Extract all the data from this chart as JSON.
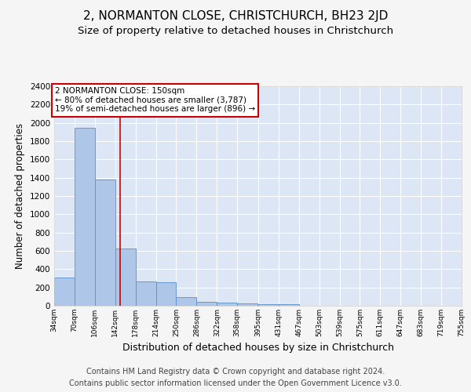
{
  "title": "2, NORMANTON CLOSE, CHRISTCHURCH, BH23 2JD",
  "subtitle": "Size of property relative to detached houses in Christchurch",
  "xlabel": "Distribution of detached houses by size in Christchurch",
  "ylabel": "Number of detached properties",
  "footer_line1": "Contains HM Land Registry data © Crown copyright and database right 2024.",
  "footer_line2": "Contains public sector information licensed under the Open Government Licence v3.0.",
  "bar_edges": [
    34,
    70,
    106,
    142,
    178,
    214,
    250,
    286,
    322,
    358,
    395,
    431,
    467,
    503,
    539,
    575,
    611,
    647,
    683,
    719,
    755
  ],
  "bar_heights": [
    310,
    1950,
    1380,
    630,
    270,
    260,
    95,
    45,
    35,
    25,
    20,
    15,
    0,
    0,
    0,
    0,
    0,
    0,
    0,
    0
  ],
  "bar_color": "#aec6e8",
  "bar_edge_color": "#5b8fc9",
  "property_line_x": 150,
  "property_line_color": "#cc0000",
  "annotation_line1": "2 NORMANTON CLOSE: 150sqm",
  "annotation_line2": "← 80% of detached houses are smaller (3,787)",
  "annotation_line3": "19% of semi-detached houses are larger (896) →",
  "annotation_box_color": "#cc0000",
  "ylim": [
    0,
    2400
  ],
  "yticks": [
    0,
    200,
    400,
    600,
    800,
    1000,
    1200,
    1400,
    1600,
    1800,
    2000,
    2200,
    2400
  ],
  "plot_bg_color": "#dce6f5",
  "grid_color": "#ffffff",
  "fig_bg_color": "#f5f5f5",
  "title_fontsize": 11,
  "subtitle_fontsize": 9.5,
  "xlabel_fontsize": 9,
  "ylabel_fontsize": 8.5,
  "footer_fontsize": 7
}
